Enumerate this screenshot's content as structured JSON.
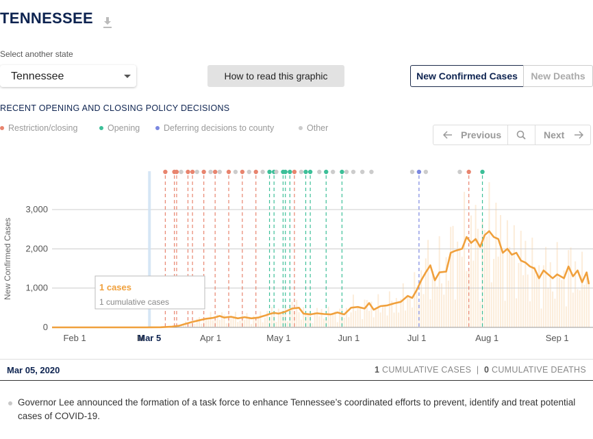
{
  "header": {
    "title": "TENNESSEE",
    "download_icon": "download-icon"
  },
  "state_select": {
    "label": "Select another state",
    "value": "Tennessee"
  },
  "how_button": {
    "label": "How to read this graphic"
  },
  "tabs": [
    {
      "label": "New Confirmed Cases",
      "active": true
    },
    {
      "label": "New Deaths",
      "active": false
    }
  ],
  "policy": {
    "heading": "RECENT OPENING AND CLOSING POLICY DECISIONS",
    "legend": [
      {
        "label": "Restriction/closing",
        "color": "#e8846e"
      },
      {
        "label": "Opening",
        "color": "#3cbf98"
      },
      {
        "label": "Deferring decisions to county",
        "color": "#7a87e0"
      },
      {
        "label": "Other",
        "color": "#cccccc"
      }
    ]
  },
  "nav": {
    "prev_label": "Previous",
    "next_label": "Next",
    "search_icon": "search-icon"
  },
  "chart_data": {
    "type": "line",
    "ylabel": "New Confirmed Cases",
    "yticks": [
      0,
      1000,
      2000,
      3000
    ],
    "ytick_labels": [
      "0",
      "1,000",
      "2,000",
      "3,000"
    ],
    "ylim": [
      0,
      3200
    ],
    "xlim": [
      "2020-01-22",
      "2020-09-15"
    ],
    "xticks": [
      {
        "date": "2020-02-01",
        "label": "Feb 1"
      },
      {
        "date": "2020-03-01",
        "label": "M"
      },
      {
        "date": "2020-04-01",
        "label": "Apr 1"
      },
      {
        "date": "2020-05-01",
        "label": "May 1"
      },
      {
        "date": "2020-06-01",
        "label": "Jun 1"
      },
      {
        "date": "2020-07-01",
        "label": "Jul 1"
      },
      {
        "date": "2020-08-01",
        "label": "Aug 1"
      },
      {
        "date": "2020-09-01",
        "label": "Sep 1"
      }
    ],
    "selected": {
      "date": "2020-03-05",
      "label": "Mar 5"
    },
    "tooltip": {
      "value": "1 cases",
      "sub": "1 cumulative cases"
    },
    "series": [
      {
        "color": "#f0a03c",
        "points": [
          [
            "2020-01-22",
            0
          ],
          [
            "2020-03-04",
            0
          ],
          [
            "2020-03-05",
            1
          ],
          [
            "2020-03-10",
            3
          ],
          [
            "2020-03-15",
            20
          ],
          [
            "2020-03-18",
            40
          ],
          [
            "2020-03-21",
            90
          ],
          [
            "2020-03-24",
            140
          ],
          [
            "2020-03-27",
            180
          ],
          [
            "2020-03-30",
            220
          ],
          [
            "2020-04-02",
            240
          ],
          [
            "2020-04-05",
            290
          ],
          [
            "2020-04-07",
            250
          ],
          [
            "2020-04-10",
            270
          ],
          [
            "2020-04-13",
            230
          ],
          [
            "2020-04-16",
            260
          ],
          [
            "2020-04-19",
            230
          ],
          [
            "2020-04-22",
            250
          ],
          [
            "2020-04-25",
            300
          ],
          [
            "2020-04-27",
            340
          ],
          [
            "2020-04-29",
            370
          ],
          [
            "2020-05-01",
            350
          ],
          [
            "2020-05-04",
            400
          ],
          [
            "2020-05-07",
            480
          ],
          [
            "2020-05-10",
            500
          ],
          [
            "2020-05-12",
            350
          ],
          [
            "2020-05-15",
            330
          ],
          [
            "2020-05-18",
            360
          ],
          [
            "2020-05-21",
            340
          ],
          [
            "2020-05-24",
            330
          ],
          [
            "2020-05-27",
            380
          ],
          [
            "2020-05-30",
            330
          ],
          [
            "2020-06-02",
            500
          ],
          [
            "2020-06-05",
            520
          ],
          [
            "2020-06-08",
            480
          ],
          [
            "2020-06-10",
            620
          ],
          [
            "2020-06-12",
            450
          ],
          [
            "2020-06-15",
            540
          ],
          [
            "2020-06-18",
            560
          ],
          [
            "2020-06-21",
            610
          ],
          [
            "2020-06-24",
            650
          ],
          [
            "2020-06-27",
            800
          ],
          [
            "2020-06-29",
            750
          ],
          [
            "2020-07-01",
            950
          ],
          [
            "2020-07-03",
            1200
          ],
          [
            "2020-07-05",
            1400
          ],
          [
            "2020-07-07",
            1580
          ],
          [
            "2020-07-09",
            1200
          ],
          [
            "2020-07-11",
            1400
          ],
          [
            "2020-07-14",
            1420
          ],
          [
            "2020-07-16",
            1900
          ],
          [
            "2020-07-18",
            1950
          ],
          [
            "2020-07-21",
            2000
          ],
          [
            "2020-07-23",
            2300
          ],
          [
            "2020-07-25",
            2150
          ],
          [
            "2020-07-27",
            2250
          ],
          [
            "2020-07-29",
            2050
          ],
          [
            "2020-07-31",
            2350
          ],
          [
            "2020-08-02",
            2450
          ],
          [
            "2020-08-04",
            2300
          ],
          [
            "2020-08-06",
            2250
          ],
          [
            "2020-08-08",
            1900
          ],
          [
            "2020-08-10",
            2000
          ],
          [
            "2020-08-12",
            1850
          ],
          [
            "2020-08-14",
            1900
          ],
          [
            "2020-08-16",
            1700
          ],
          [
            "2020-08-18",
            1650
          ],
          [
            "2020-08-20",
            1550
          ],
          [
            "2020-08-22",
            1500
          ],
          [
            "2020-08-24",
            1250
          ],
          [
            "2020-08-26",
            1450
          ],
          [
            "2020-08-28",
            1350
          ],
          [
            "2020-08-30",
            1250
          ],
          [
            "2020-09-01",
            1350
          ],
          [
            "2020-09-04",
            1250
          ],
          [
            "2020-09-06",
            1550
          ],
          [
            "2020-09-08",
            1300
          ],
          [
            "2020-09-10",
            1450
          ],
          [
            "2020-09-12",
            1150
          ],
          [
            "2020-09-14",
            1400
          ],
          [
            "2020-09-15",
            1100
          ]
        ]
      }
    ],
    "policy_events": [
      {
        "date": "2020-03-12",
        "type": "restriction"
      },
      {
        "date": "2020-03-16",
        "type": "restriction"
      },
      {
        "date": "2020-03-17",
        "type": "restriction"
      },
      {
        "date": "2020-03-19",
        "type": "other"
      },
      {
        "date": "2020-03-22",
        "type": "restriction"
      },
      {
        "date": "2020-03-24",
        "type": "restriction"
      },
      {
        "date": "2020-03-26",
        "type": "other"
      },
      {
        "date": "2020-03-29",
        "type": "restriction"
      },
      {
        "date": "2020-04-01",
        "type": "other"
      },
      {
        "date": "2020-04-03",
        "type": "restriction"
      },
      {
        "date": "2020-04-05",
        "type": "other"
      },
      {
        "date": "2020-04-09",
        "type": "restriction"
      },
      {
        "date": "2020-04-12",
        "type": "other"
      },
      {
        "date": "2020-04-15",
        "type": "restriction"
      },
      {
        "date": "2020-04-18",
        "type": "other"
      },
      {
        "date": "2020-04-21",
        "type": "restriction"
      },
      {
        "date": "2020-04-24",
        "type": "other"
      },
      {
        "date": "2020-04-27",
        "type": "opening"
      },
      {
        "date": "2020-04-29",
        "type": "opening"
      },
      {
        "date": "2020-04-30",
        "type": "other"
      },
      {
        "date": "2020-05-03",
        "type": "opening"
      },
      {
        "date": "2020-05-04",
        "type": "opening"
      },
      {
        "date": "2020-05-06",
        "type": "opening"
      },
      {
        "date": "2020-05-08",
        "type": "restriction"
      },
      {
        "date": "2020-05-11",
        "type": "other"
      },
      {
        "date": "2020-05-13",
        "type": "opening"
      },
      {
        "date": "2020-05-15",
        "type": "opening"
      },
      {
        "date": "2020-05-19",
        "type": "other"
      },
      {
        "date": "2020-05-22",
        "type": "opening"
      },
      {
        "date": "2020-05-25",
        "type": "other"
      },
      {
        "date": "2020-05-29",
        "type": "opening"
      },
      {
        "date": "2020-05-31",
        "type": "other"
      },
      {
        "date": "2020-06-03",
        "type": "other"
      },
      {
        "date": "2020-06-07",
        "type": "other"
      },
      {
        "date": "2020-06-11",
        "type": "other"
      },
      {
        "date": "2020-06-29",
        "type": "other"
      },
      {
        "date": "2020-07-02",
        "type": "deferring"
      },
      {
        "date": "2020-07-05",
        "type": "other"
      },
      {
        "date": "2020-07-20",
        "type": "other"
      },
      {
        "date": "2020-07-24",
        "type": "restriction"
      },
      {
        "date": "2020-07-30",
        "type": "opening"
      }
    ]
  },
  "detail": {
    "date": "Mar 05, 2020",
    "cum_cases_value": "1",
    "cum_cases_label": "CUMULATIVE CASES",
    "separator": "|",
    "cum_deaths_value": "0",
    "cum_deaths_label": "CUMULATIVE DEATHS",
    "note": "Governor Lee announced the formation of a task force to enhance Tennessee’s coordinated efforts to prevent, identify and treat potential cases of COVID-19."
  }
}
